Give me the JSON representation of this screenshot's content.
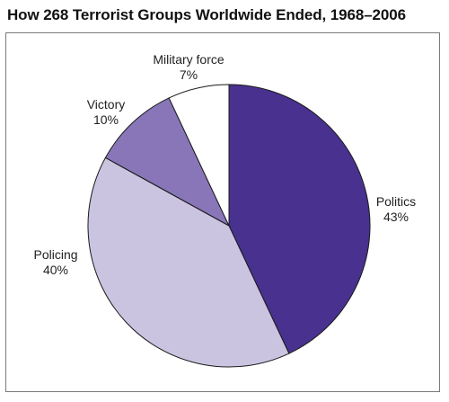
{
  "chart_data": {
    "type": "pie",
    "title": "How 268 Terrorist Groups Worldwide Ended, 1968–2006",
    "slices": [
      {
        "label": "Politics",
        "value": 43,
        "value_label": "43%",
        "color": "#48318f"
      },
      {
        "label": "Policing",
        "value": 40,
        "value_label": "40%",
        "color": "#cbc4e1"
      },
      {
        "label": "Victory",
        "value": 10,
        "value_label": "10%",
        "color": "#8876b9"
      },
      {
        "label": "Military force",
        "value": 7,
        "value_label": "7%",
        "color": "#ffffff"
      }
    ],
    "start_angle_deg": 0,
    "direction": "clockwise",
    "legend": "none",
    "labels": "outside"
  }
}
